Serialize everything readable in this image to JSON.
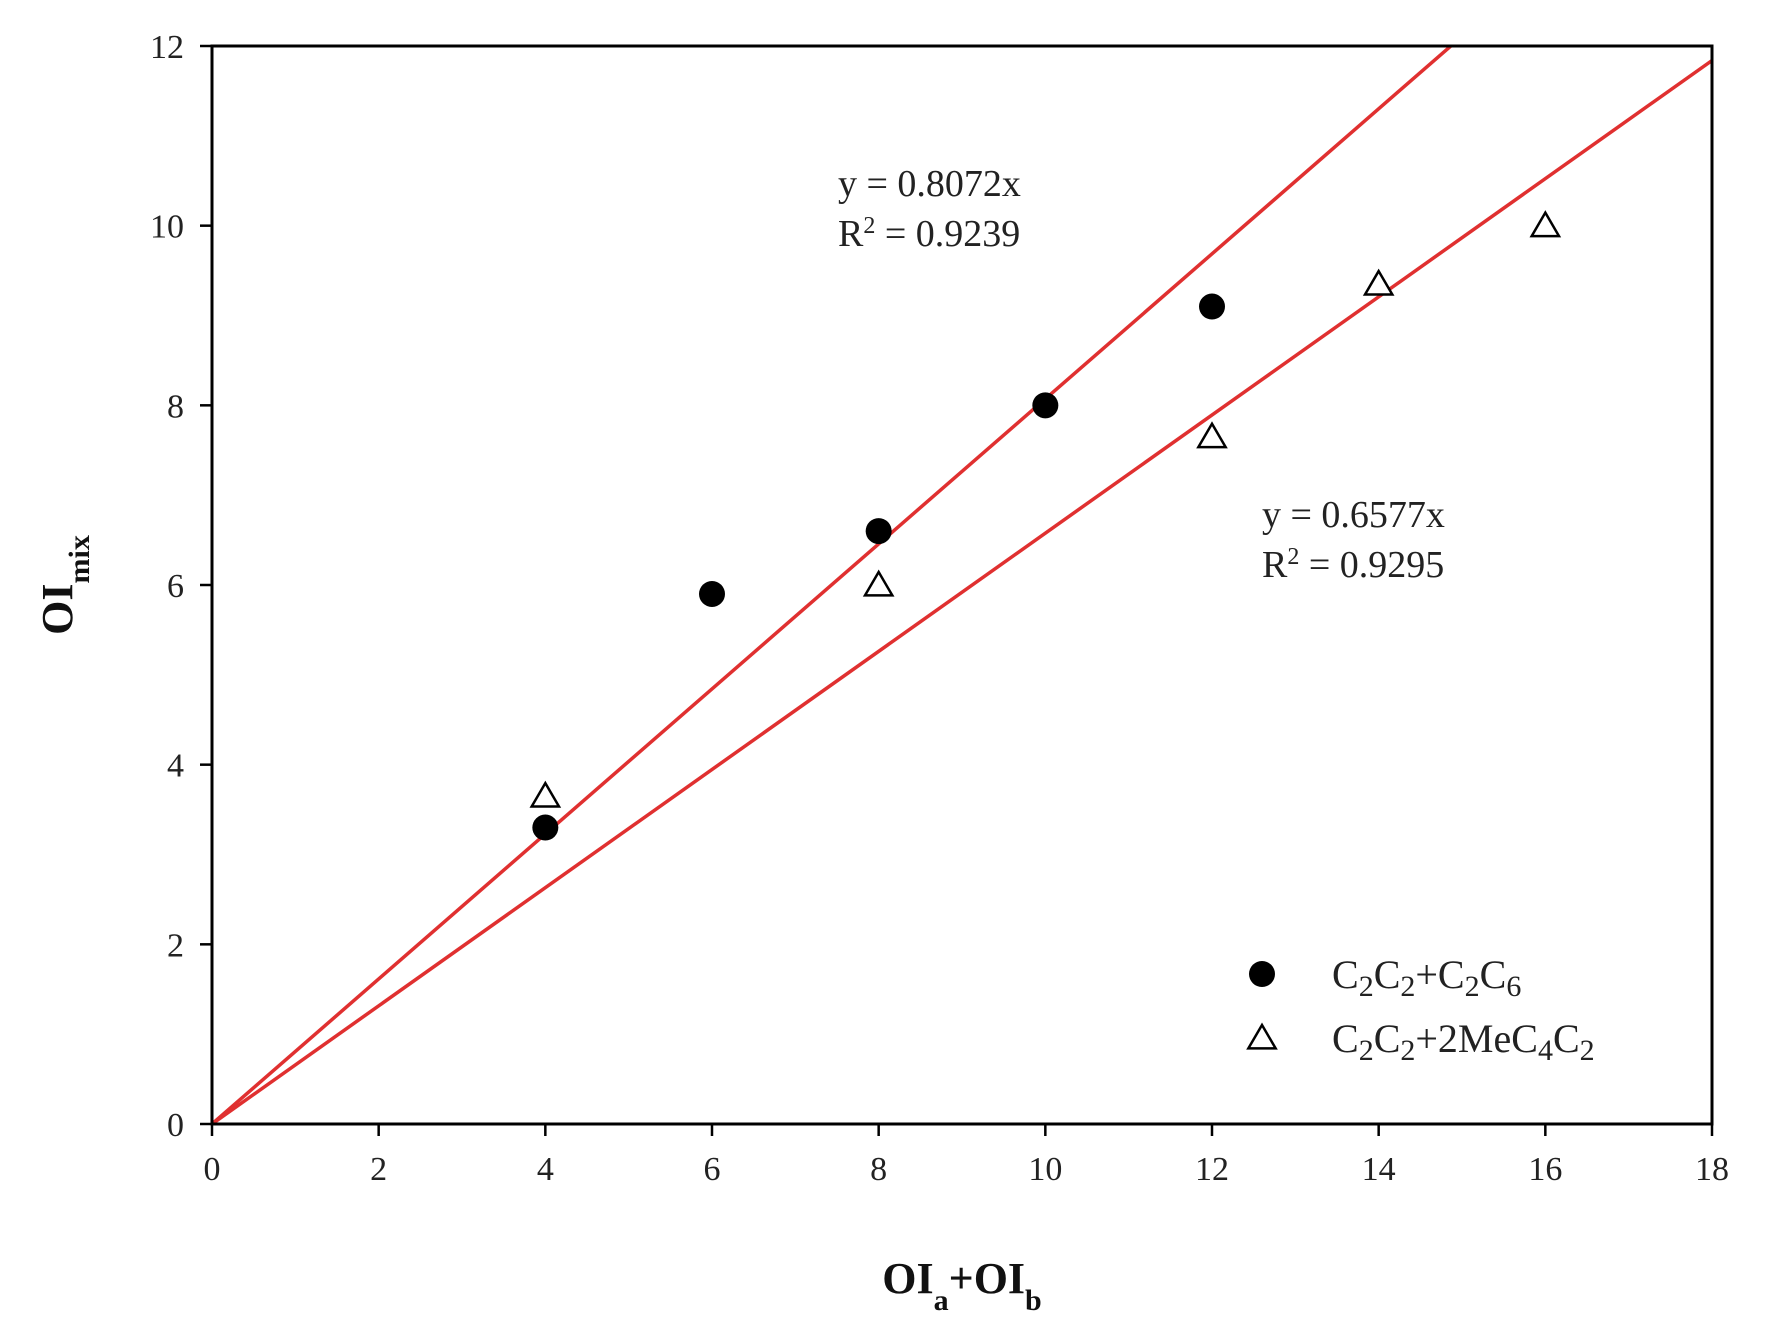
{
  "chart_data": {
    "type": "scatter",
    "xlabel": {
      "main": "OI",
      "sub_a": "a",
      "plus": "+OI",
      "sub_b": "b"
    },
    "ylabel": {
      "main": "OI",
      "sub": "mix"
    },
    "xlim": [
      0,
      18
    ],
    "ylim": [
      0,
      12
    ],
    "xticks": [
      0,
      2,
      4,
      6,
      8,
      10,
      12,
      14,
      16,
      18
    ],
    "yticks": [
      0,
      2,
      4,
      6,
      8,
      10,
      12
    ],
    "grid": false,
    "legend_position": "bottom-right",
    "series": [
      {
        "name": "C2C2+C2C6",
        "marker": "filled-circle",
        "color": "#000000",
        "points": [
          [
            4,
            3.3
          ],
          [
            6,
            5.9
          ],
          [
            8,
            6.6
          ],
          [
            10,
            8.0
          ],
          [
            12,
            9.1
          ]
        ]
      },
      {
        "name": "C2C2+2MeC4C2",
        "marker": "open-triangle",
        "color": "#000000",
        "points": [
          [
            4,
            3.65
          ],
          [
            8,
            6.0
          ],
          [
            12,
            7.65
          ],
          [
            14,
            9.35
          ],
          [
            16,
            10.0
          ]
        ]
      }
    ],
    "fits": [
      {
        "slope": 0.8072,
        "color": "#e03030",
        "eq": "y = 0.8072x",
        "r2_label": "R",
        "r2_sup": "2",
        "r2_value": " = 0.9239"
      },
      {
        "slope": 0.6577,
        "color": "#e03030",
        "eq": "y = 0.6577x",
        "r2_label": "R",
        "r2_sup": "2",
        "r2_value": " = 0.9295"
      }
    ],
    "legend": [
      {
        "marker": "filled-circle",
        "parts": [
          "C",
          "2",
          "C",
          "2",
          "+C",
          "2",
          "C",
          "6"
        ]
      },
      {
        "marker": "open-triangle",
        "parts": [
          "C",
          "2",
          "C",
          "2",
          "+2MeC",
          "4",
          "C",
          "2"
        ]
      }
    ]
  }
}
